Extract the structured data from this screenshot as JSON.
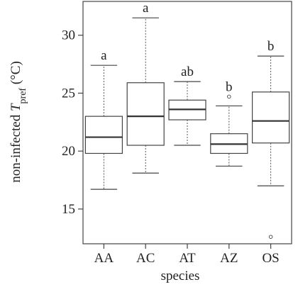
{
  "chart_data": {
    "type": "boxplot",
    "xlabel": "species",
    "ylabel": {
      "prefix": "non-infected ",
      "symbol": "T",
      "subscript": "pref",
      "unit": " (°C)"
    },
    "ylim": [
      12.0,
      32.5
    ],
    "yticks": [
      15,
      20,
      25,
      30
    ],
    "grid": false,
    "categories": [
      "AA",
      "AC",
      "AT",
      "AZ",
      "OS"
    ],
    "boxes": [
      {
        "category": "AA",
        "whisker_low": 16.7,
        "q1": 19.8,
        "median": 21.2,
        "q3": 23.0,
        "whisker_high": 27.4,
        "outliers": [],
        "group_label": "a"
      },
      {
        "category": "AC",
        "whisker_low": 18.1,
        "q1": 20.5,
        "median": 23.0,
        "q3": 25.9,
        "whisker_high": 31.5,
        "outliers": [],
        "group_label": "a"
      },
      {
        "category": "AT",
        "whisker_low": 20.5,
        "q1": 22.7,
        "median": 23.6,
        "q3": 24.4,
        "whisker_high": 26.0,
        "outliers": [],
        "group_label": "ab"
      },
      {
        "category": "AZ",
        "whisker_low": 18.7,
        "q1": 19.8,
        "median": 20.6,
        "q3": 21.5,
        "whisker_high": 23.9,
        "outliers": [
          24.7
        ],
        "group_label": "b"
      },
      {
        "category": "OS",
        "whisker_low": 17.0,
        "q1": 20.7,
        "median": 22.6,
        "q3": 25.1,
        "whisker_high": 28.2,
        "outliers": [
          12.6
        ],
        "group_label": "b"
      }
    ],
    "colors": {
      "box_stroke": "#444444",
      "median": "#333333",
      "frame": "#444444",
      "whisker": "#555555"
    }
  }
}
